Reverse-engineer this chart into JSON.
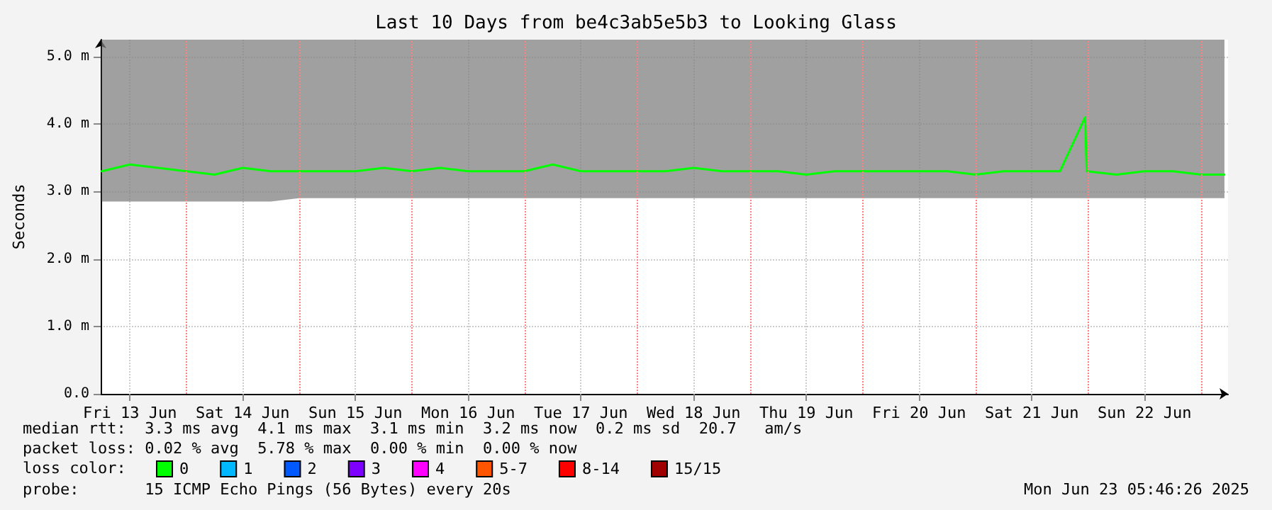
{
  "chart_data": {
    "type": "line",
    "title": "Last 10 Days from be4c3ab5e5b3 to Looking Glass",
    "ylabel": "Seconds",
    "x": [
      "2025-06-13T06:00",
      "2025-06-13T12:00",
      "2025-06-13T18:00",
      "2025-06-14T00:00",
      "2025-06-14T06:00",
      "2025-06-14T12:00",
      "2025-06-14T18:00",
      "2025-06-15T00:00",
      "2025-06-15T06:00",
      "2025-06-15T12:00",
      "2025-06-15T18:00",
      "2025-06-16T00:00",
      "2025-06-16T06:00",
      "2025-06-16T12:00",
      "2025-06-16T18:00",
      "2025-06-17T00:00",
      "2025-06-17T06:00",
      "2025-06-17T12:00",
      "2025-06-17T18:00",
      "2025-06-18T00:00",
      "2025-06-18T06:00",
      "2025-06-18T12:00",
      "2025-06-18T18:00",
      "2025-06-19T00:00",
      "2025-06-19T06:00",
      "2025-06-19T12:00",
      "2025-06-19T18:00",
      "2025-06-20T00:00",
      "2025-06-20T06:00",
      "2025-06-20T12:00",
      "2025-06-20T18:00",
      "2025-06-21T00:00",
      "2025-06-21T06:00",
      "2025-06-21T12:00",
      "2025-06-21T18:00",
      "2025-06-21T23:20",
      "2025-06-21T23:40",
      "2025-06-22T06:00",
      "2025-06-22T12:00",
      "2025-06-22T18:00",
      "2025-06-23T00:00",
      "2025-06-23T05:00"
    ],
    "xlim": [
      "2025-06-13T05:46",
      "2025-06-23T05:46"
    ],
    "xticks": [
      {
        "value": "2025-06-13T12:00",
        "label": "Fri 13 Jun"
      },
      {
        "value": "2025-06-14T12:00",
        "label": "Sat 14 Jun"
      },
      {
        "value": "2025-06-15T12:00",
        "label": "Sun 15 Jun"
      },
      {
        "value": "2025-06-16T12:00",
        "label": "Mon 16 Jun"
      },
      {
        "value": "2025-06-17T12:00",
        "label": "Tue 17 Jun"
      },
      {
        "value": "2025-06-18T12:00",
        "label": "Wed 18 Jun"
      },
      {
        "value": "2025-06-19T12:00",
        "label": "Thu 19 Jun"
      },
      {
        "value": "2025-06-20T12:00",
        "label": "Fri 20 Jun"
      },
      {
        "value": "2025-06-21T12:00",
        "label": "Sat 21 Jun"
      },
      {
        "value": "2025-06-22T12:00",
        "label": "Sun 22 Jun"
      }
    ],
    "ylim": [
      0,
      5.25
    ],
    "yticks": [
      {
        "value": 0,
        "label": "0.0"
      },
      {
        "value": 1,
        "label": "1.0 m"
      },
      {
        "value": 2,
        "label": "2.0 m"
      },
      {
        "value": 3,
        "label": "3.0 m"
      },
      {
        "value": 4,
        "label": "4.0 m"
      },
      {
        "value": 5,
        "label": "5.0 m"
      }
    ],
    "series": [
      {
        "name": "0",
        "color": "#00ff00",
        "values": [
          3.3,
          3.4,
          3.35,
          3.3,
          3.25,
          3.35,
          3.3,
          3.3,
          3.3,
          3.3,
          3.35,
          3.3,
          3.35,
          3.3,
          3.3,
          3.3,
          3.4,
          3.3,
          3.3,
          3.3,
          3.3,
          3.35,
          3.3,
          3.3,
          3.3,
          3.25,
          3.3,
          3.3,
          3.3,
          3.3,
          3.3,
          3.25,
          3.3,
          3.3,
          3.3,
          4.1,
          3.3,
          3.25,
          3.3,
          3.3,
          3.25,
          3.25
        ],
        "lower": [
          2.85,
          2.85,
          2.85,
          2.85,
          2.85,
          2.85,
          2.85,
          2.9,
          2.9,
          2.9,
          2.9,
          2.9,
          2.9,
          2.9,
          2.9,
          2.9,
          2.9,
          2.9,
          2.9,
          2.9,
          2.9,
          2.9,
          2.9,
          2.9,
          2.9,
          2.9,
          2.9,
          2.9,
          2.9,
          2.9,
          2.9,
          2.9,
          2.9,
          2.9,
          2.9,
          2.9,
          2.9,
          2.9,
          2.9,
          2.9,
          2.9,
          2.9
        ],
        "upper": [
          5.25,
          5.25,
          5.25,
          5.25,
          5.25,
          5.25,
          5.25,
          5.25,
          5.25,
          5.25,
          5.25,
          5.25,
          5.25,
          5.25,
          5.25,
          5.25,
          5.25,
          5.25,
          5.25,
          5.25,
          5.25,
          5.25,
          5.25,
          5.25,
          5.25,
          5.25,
          5.25,
          5.25,
          5.25,
          5.25,
          5.25,
          5.25,
          5.25,
          5.25,
          5.25,
          5.25,
          5.25,
          5.25,
          5.25,
          5.25,
          5.25,
          5.25
        ]
      },
      {
        "name": "1",
        "color": "#00b8ff",
        "values": [
          null,
          null,
          null,
          null,
          null,
          null,
          null,
          null,
          null,
          null,
          null,
          null,
          null,
          null,
          null,
          null,
          null,
          null,
          null,
          null,
          null,
          null,
          null,
          null,
          null,
          null,
          null,
          null,
          null,
          null,
          null,
          null,
          null,
          null,
          null,
          null,
          null,
          null,
          null,
          null,
          null,
          null
        ]
      },
      {
        "name": "2",
        "color": "#0059ff",
        "values": [
          null,
          null,
          null,
          null,
          null,
          null,
          null,
          null,
          null,
          null,
          null,
          null,
          null,
          null,
          null,
          null,
          null,
          null,
          null,
          null,
          null,
          null,
          null,
          null,
          null,
          null,
          null,
          null,
          null,
          null,
          null,
          null,
          null,
          null,
          null,
          null,
          null,
          null,
          null,
          null,
          null,
          null
        ]
      },
      {
        "name": "3",
        "color": "#7e00ff",
        "values": [
          null,
          null,
          null,
          null,
          null,
          null,
          null,
          null,
          null,
          null,
          null,
          null,
          null,
          null,
          null,
          null,
          null,
          null,
          null,
          null,
          null,
          null,
          null,
          null,
          null,
          null,
          null,
          null,
          null,
          null,
          null,
          null,
          null,
          null,
          null,
          null,
          null,
          null,
          null,
          null,
          null,
          null
        ]
      },
      {
        "name": "4",
        "color": "#ff00ff",
        "values": [
          null,
          null,
          null,
          null,
          null,
          null,
          null,
          null,
          null,
          null,
          null,
          null,
          null,
          null,
          null,
          null,
          null,
          null,
          null,
          null,
          null,
          null,
          null,
          null,
          null,
          null,
          null,
          null,
          null,
          null,
          null,
          null,
          null,
          null,
          null,
          null,
          null,
          null,
          null,
          null,
          null,
          null
        ]
      },
      {
        "name": "5-7",
        "color": "#ff5500",
        "values": [
          null,
          null,
          null,
          null,
          null,
          null,
          null,
          null,
          null,
          null,
          null,
          null,
          null,
          null,
          null,
          null,
          null,
          null,
          null,
          null,
          null,
          null,
          null,
          null,
          null,
          null,
          null,
          null,
          null,
          null,
          null,
          null,
          null,
          null,
          null,
          null,
          null,
          null,
          null,
          null,
          null,
          null
        ]
      },
      {
        "name": "8-14",
        "color": "#ff0000",
        "values": [
          null,
          null,
          null,
          null,
          null,
          null,
          null,
          null,
          null,
          null,
          null,
          null,
          null,
          null,
          null,
          null,
          null,
          null,
          null,
          null,
          null,
          null,
          null,
          null,
          null,
          null,
          null,
          null,
          null,
          null,
          null,
          null,
          null,
          null,
          null,
          null,
          null,
          null,
          null,
          null,
          null,
          null
        ]
      },
      {
        "name": "15/15",
        "color": "#a10000",
        "values": [
          null,
          null,
          null,
          null,
          null,
          null,
          null,
          null,
          null,
          null,
          null,
          null,
          null,
          null,
          null,
          null,
          null,
          null,
          null,
          null,
          null,
          null,
          null,
          null,
          null,
          null,
          null,
          null,
          null,
          null,
          null,
          null,
          null,
          null,
          null,
          null,
          null,
          null,
          null,
          null,
          null,
          null
        ]
      }
    ],
    "ref_lines": [
      {
        "axis": "x",
        "value": "2025-06-14T00:00",
        "color": "#ff8080",
        "line_style": "dotted"
      },
      {
        "axis": "x",
        "value": "2025-06-15T00:00",
        "color": "#ff8080",
        "line_style": "dotted"
      },
      {
        "axis": "x",
        "value": "2025-06-16T00:00",
        "color": "#ff8080",
        "line_style": "dotted"
      },
      {
        "axis": "x",
        "value": "2025-06-17T00:00",
        "color": "#ff8080",
        "line_style": "dotted"
      },
      {
        "axis": "x",
        "value": "2025-06-18T00:00",
        "color": "#ff8080",
        "line_style": "dotted"
      },
      {
        "axis": "x",
        "value": "2025-06-19T00:00",
        "color": "#ff8080",
        "line_style": "dotted"
      },
      {
        "axis": "x",
        "value": "2025-06-20T00:00",
        "color": "#ff8080",
        "line_style": "dotted"
      },
      {
        "axis": "x",
        "value": "2025-06-21T00:00",
        "color": "#ff8080",
        "line_style": "dotted"
      },
      {
        "axis": "x",
        "value": "2025-06-22T00:00",
        "color": "#ff8080",
        "line_style": "dotted"
      },
      {
        "axis": "x",
        "value": "2025-06-23T00:00",
        "color": "#ff8080",
        "line_style": "dotted"
      }
    ],
    "grid": true,
    "legend": "bottom left",
    "marker": "none",
    "line_style": "solid",
    "annotations": [
      "median rtt:  3.3 ms avg  4.1 ms max  3.1 ms min  3.2 ms now  0.2 ms sd  20.7   am/s",
      "packet loss: 0.02 % avg  5.78 % max  0.00 % min  0.00 % now",
      "loss color:",
      "probe:       15 ICMP Echo Pings (56 Bytes) every 20s",
      "Mon Jun 23 05:46:26 2025"
    ]
  }
}
